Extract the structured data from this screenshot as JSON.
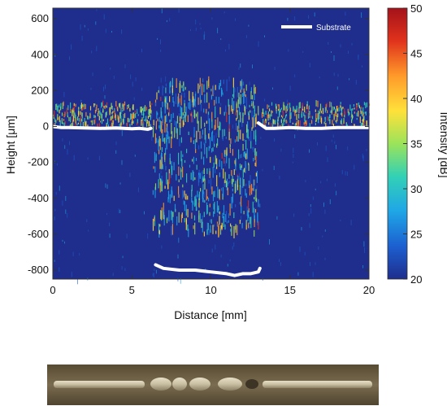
{
  "chart_data": {
    "type": "heatmap",
    "title": "",
    "xlabel": "Distance [mm]",
    "ylabel": "Height [μm]",
    "xlim": [
      0,
      20
    ],
    "ylim": [
      -850,
      660
    ],
    "x_ticks": [
      0,
      5,
      10,
      15,
      20
    ],
    "y_ticks": [
      -800,
      -600,
      -400,
      -200,
      0,
      200,
      400,
      600
    ],
    "grid": false,
    "background_color": "#1f2d8c",
    "colorbar": {
      "label": "Intensity [dB]",
      "range": [
        20,
        50
      ],
      "ticks": [
        20,
        25,
        30,
        35,
        40,
        45,
        50
      ],
      "colormap": [
        "#1f2d8c",
        "#1c5fd0",
        "#1fa6e6",
        "#33d1b5",
        "#9be35a",
        "#ffe13a",
        "#ff9a2a",
        "#e0321c",
        "#a4121a"
      ]
    },
    "legend": {
      "position": "top-right",
      "entries": [
        {
          "label": "Substrate",
          "color": "#ffffff"
        }
      ]
    },
    "series": [
      {
        "name": "Substrate",
        "color": "#ffffff",
        "segments": [
          {
            "x": [
              0,
              0.5,
              1,
              2,
              3,
              4,
              5,
              5.5,
              6,
              6.2
            ],
            "y": [
              0,
              -5,
              -5,
              -8,
              -10,
              -8,
              -12,
              -10,
              -15,
              -10
            ]
          },
          {
            "x": [
              6.5,
              7,
              8,
              9,
              10,
              11,
              11.5,
              12,
              12.5,
              13,
              13.1
            ],
            "y": [
              -770,
              -790,
              -800,
              -800,
              -810,
              -820,
              -830,
              -820,
              -820,
              -810,
              -790
            ]
          },
          {
            "x": [
              13,
              13.5,
              14,
              15,
              16,
              17,
              18,
              19,
              19.5,
              20
            ],
            "y": [
              20,
              -10,
              -10,
              -5,
              -10,
              -10,
              -5,
              -5,
              -5,
              -5
            ]
          }
        ]
      }
    ],
    "intensity_regions": [
      {
        "x_range": [
          0,
          6.3
        ],
        "y_range": [
          0,
          130
        ],
        "intensity_range": [
          30,
          48
        ]
      },
      {
        "x_range": [
          6.3,
          13
        ],
        "y_range": [
          -600,
          250
        ],
        "intensity_range": [
          25,
          45
        ]
      },
      {
        "x_range": [
          13.2,
          20
        ],
        "y_range": [
          0,
          130
        ],
        "intensity_range": [
          30,
          48
        ]
      }
    ]
  },
  "photo": {
    "color": "#6e6045"
  }
}
